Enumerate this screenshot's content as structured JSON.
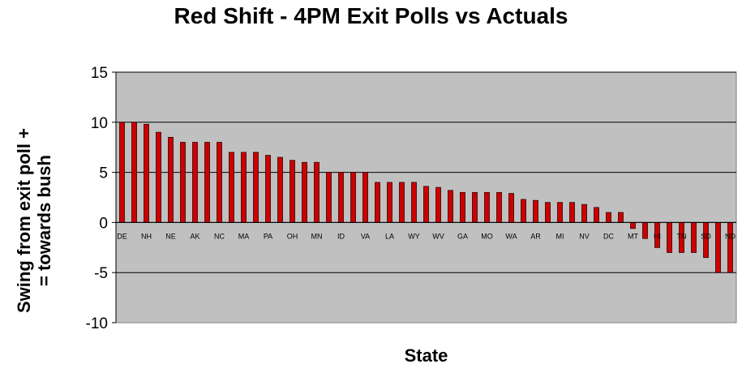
{
  "chart_data": {
    "type": "bar",
    "title": "Red Shift - 4PM Exit Polls vs Actuals",
    "xlabel": "State",
    "ylabel": "Swing from exit poll +\n= towards bush",
    "ylim": [
      -10,
      15
    ],
    "yticks": [
      15,
      10,
      5,
      0,
      -5,
      -10
    ],
    "grid": true,
    "colors": {
      "bar": "#cc0000",
      "bar_edge": "#330000",
      "plot_bg": "#c0c0c0",
      "grid": "#000000"
    },
    "categories": [
      "DE",
      "",
      "NH",
      "",
      "NE",
      "",
      "AK",
      "",
      "NC",
      "",
      "MA",
      "",
      "PA",
      "",
      "OH",
      "",
      "MN",
      "",
      "ID",
      "",
      "VA",
      "",
      "LA",
      "",
      "WY",
      "",
      "WV",
      "",
      "GA",
      "",
      "MO",
      "",
      "WA",
      "",
      "AR",
      "",
      "MI",
      "",
      "NV",
      "",
      "DC",
      "",
      "MT",
      "",
      "HI",
      "",
      "TN",
      "",
      "SD",
      "",
      "ND"
    ],
    "values": [
      10,
      10,
      9.8,
      9,
      8.5,
      8,
      8,
      8,
      8,
      7,
      7,
      7,
      6.7,
      6.5,
      6.2,
      6,
      6,
      5,
      5,
      5,
      5,
      4,
      4,
      4,
      4,
      3.6,
      3.5,
      3.2,
      3,
      3,
      3,
      3,
      2.9,
      2.3,
      2.2,
      2,
      2,
      2,
      1.8,
      1.5,
      1,
      1,
      -0.6,
      -1.6,
      -2.5,
      -3,
      -3,
      -3,
      -3.5,
      -5,
      -5
    ]
  }
}
